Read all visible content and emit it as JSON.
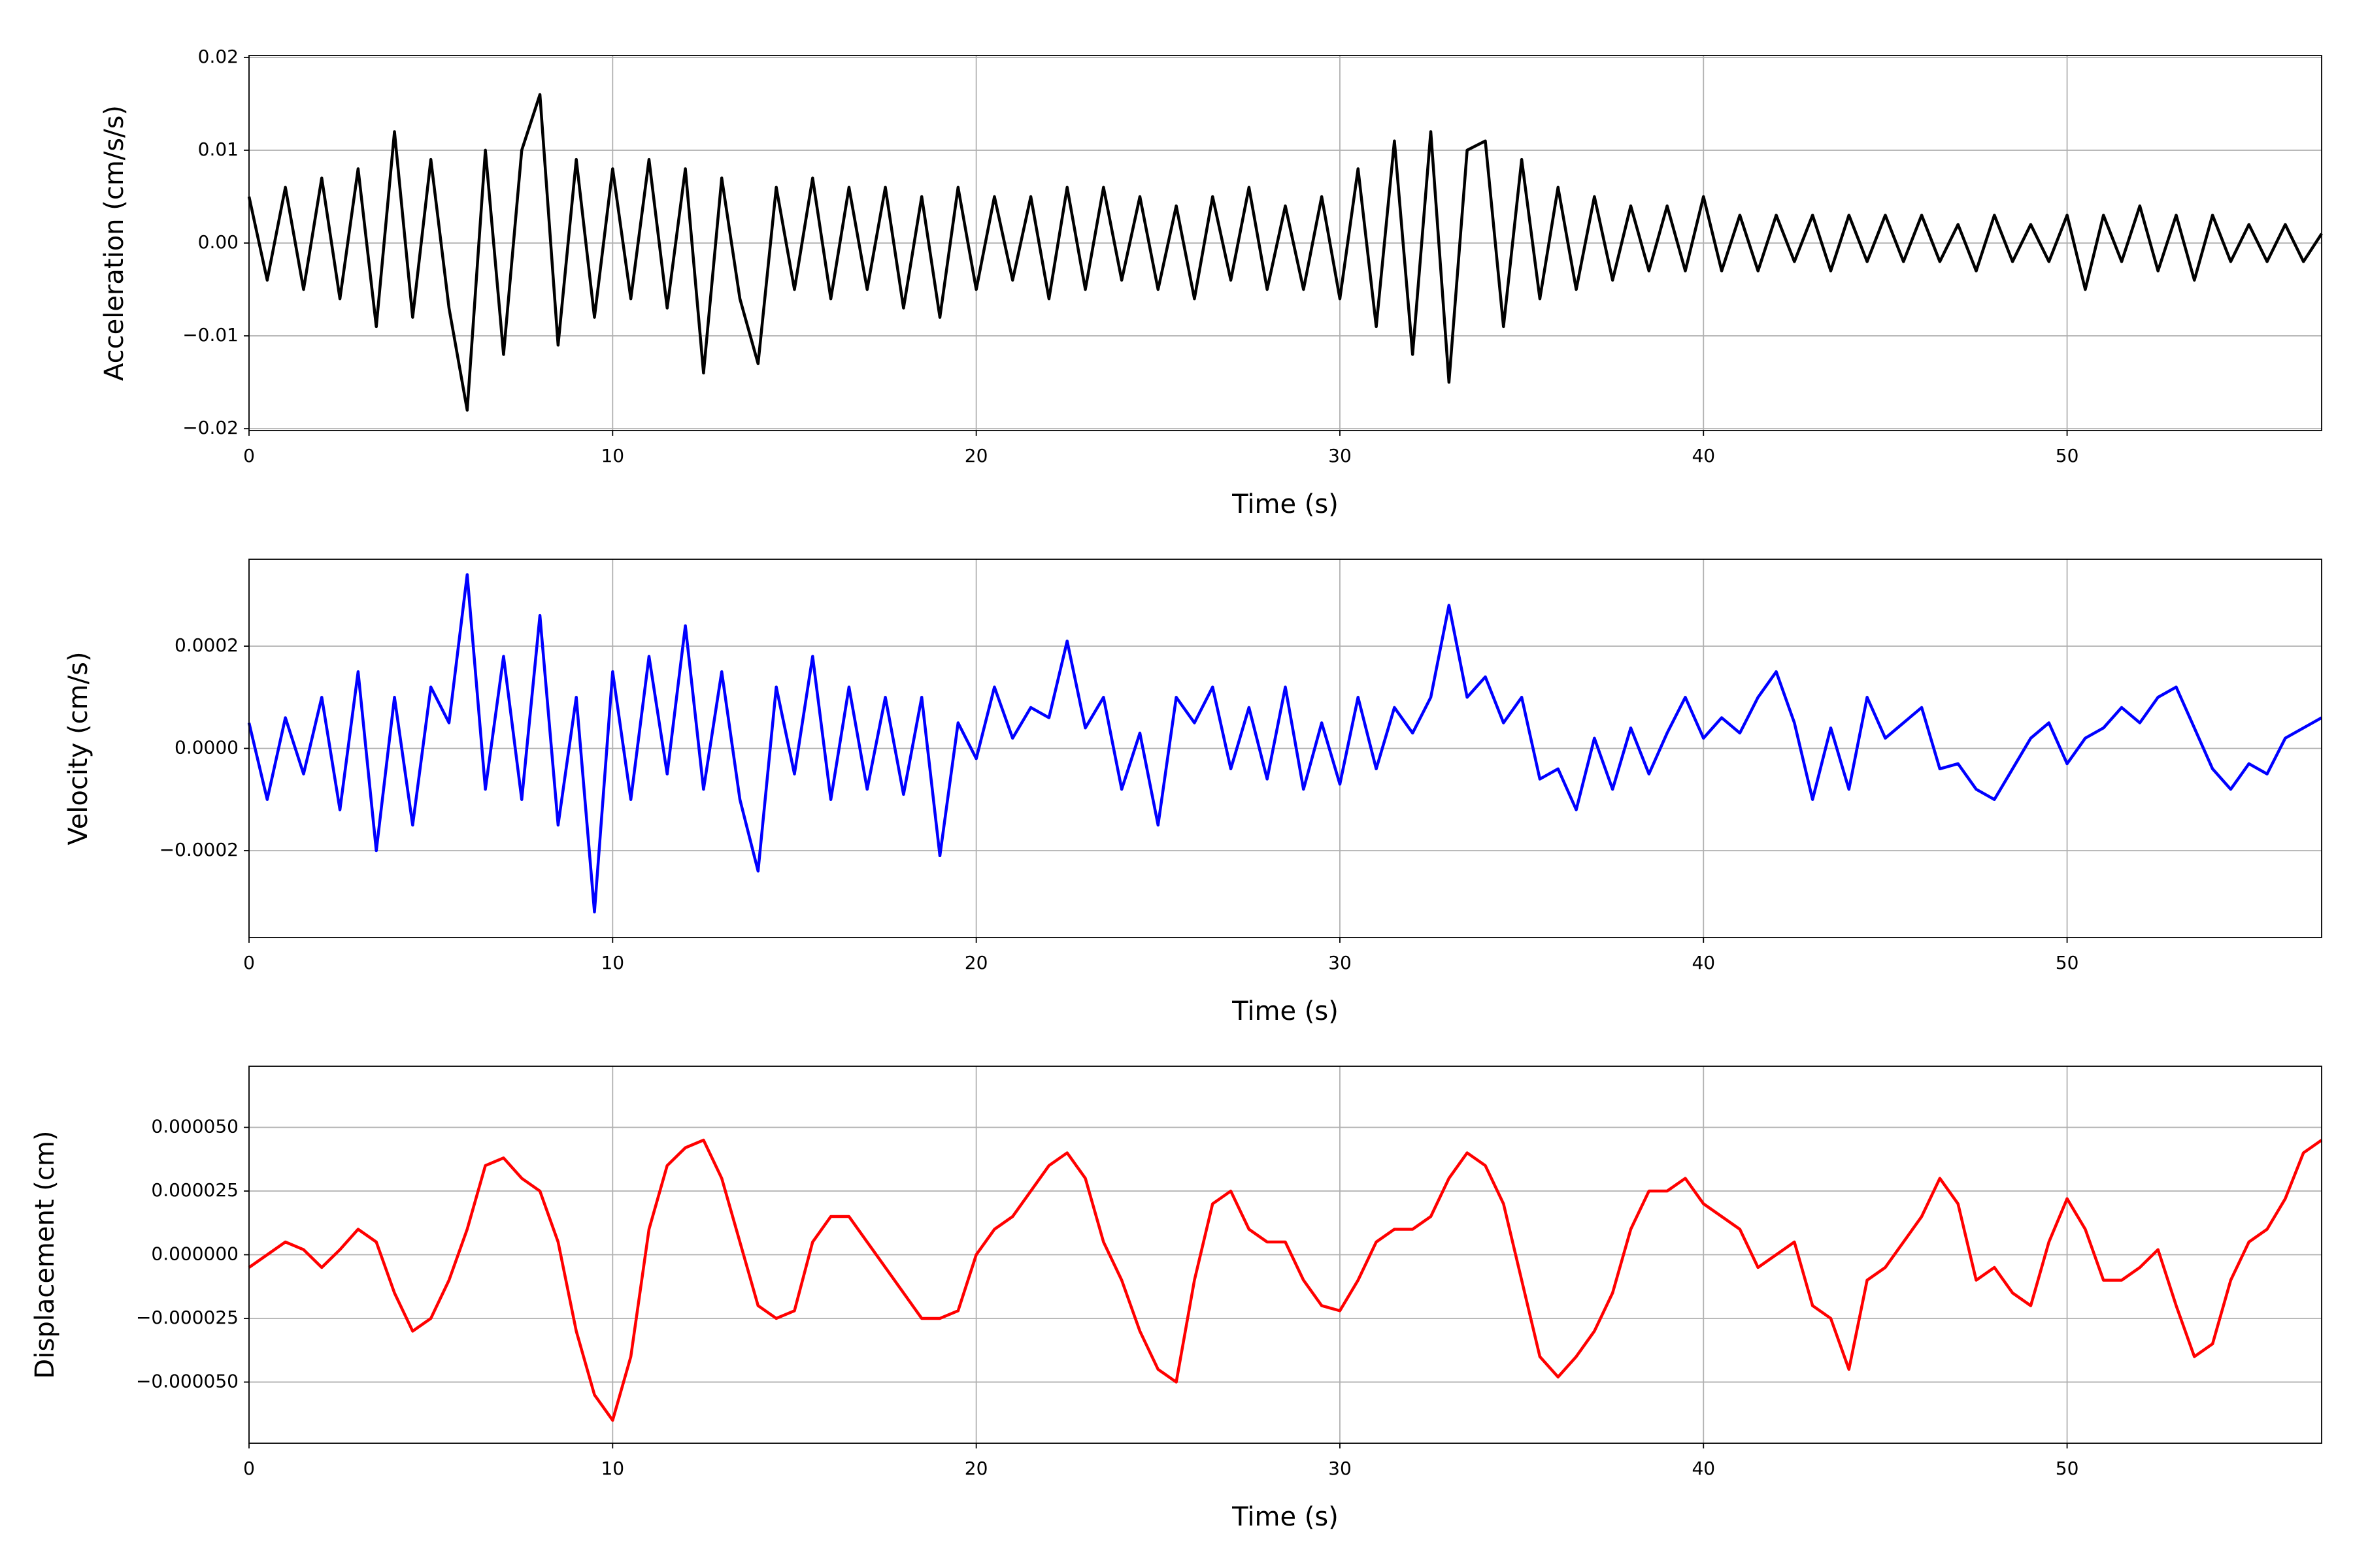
{
  "chart_data": [
    {
      "type": "line",
      "color": "#000000",
      "xlabel": "Time (s)",
      "ylabel": "Acceleration (cm/s/s)",
      "xlim": [
        0,
        57
      ],
      "xticks": [
        0,
        10,
        20,
        30,
        40,
        50
      ],
      "ylim": [
        -0.0202,
        0.0202
      ],
      "yticks": [
        {
          "value": -0.02,
          "label": "−0.02"
        },
        {
          "value": -0.01,
          "label": "−0.01"
        },
        {
          "value": 0,
          "label": "0.00"
        },
        0.01,
        0.02
      ],
      "grid": true,
      "x": [
        0,
        0.5,
        1,
        1.5,
        2,
        2.5,
        3,
        3.5,
        4,
        4.5,
        5,
        5.5,
        6,
        6.5,
        7,
        7.5,
        8,
        8.5,
        9,
        9.5,
        10,
        10.5,
        11,
        11.5,
        12,
        12.5,
        13,
        13.5,
        14,
        14.5,
        15,
        15.5,
        16,
        16.5,
        17,
        17.5,
        18,
        18.5,
        19,
        19.5,
        20,
        20.5,
        21,
        21.5,
        22,
        22.5,
        23,
        23.5,
        24,
        24.5,
        25,
        25.5,
        26,
        26.5,
        27,
        27.5,
        28,
        28.5,
        29,
        29.5,
        30,
        30.5,
        31,
        31.5,
        32,
        32.5,
        33,
        33.5,
        34,
        34.5,
        35,
        35.5,
        36,
        36.5,
        37,
        37.5,
        38,
        38.5,
        39,
        39.5,
        40,
        40.5,
        41,
        41.5,
        42,
        42.5,
        43,
        43.5,
        44,
        44.5,
        45,
        45.5,
        46,
        46.5,
        47,
        47.5,
        48,
        48.5,
        49,
        49.5,
        50,
        50.5,
        51,
        51.5,
        52,
        52.5,
        53,
        53.5,
        54,
        54.5,
        55,
        55.5,
        56,
        56.5,
        57
      ],
      "values": [
        0.005,
        -0.004,
        0.006,
        -0.005,
        0.007,
        -0.006,
        0.008,
        -0.009,
        0.012,
        -0.008,
        0.009,
        -0.007,
        -0.018,
        0.01,
        -0.012,
        0.01,
        0.016,
        -0.011,
        0.009,
        -0.008,
        0.008,
        -0.006,
        0.009,
        -0.007,
        0.008,
        -0.014,
        0.007,
        -0.006,
        -0.013,
        0.006,
        -0.005,
        0.007,
        -0.006,
        0.006,
        -0.005,
        0.006,
        -0.007,
        0.005,
        -0.008,
        0.006,
        -0.005,
        0.005,
        -0.004,
        0.005,
        -0.006,
        0.006,
        -0.005,
        0.006,
        -0.004,
        0.005,
        -0.005,
        0.004,
        -0.006,
        0.005,
        -0.004,
        0.006,
        -0.005,
        0.004,
        -0.005,
        0.005,
        -0.006,
        0.008,
        -0.009,
        0.011,
        -0.012,
        0.012,
        -0.015,
        0.01,
        0.011,
        -0.009,
        0.009,
        -0.006,
        0.006,
        -0.005,
        0.005,
        -0.004,
        0.004,
        -0.003,
        0.004,
        -0.003,
        0.005,
        -0.003,
        0.003,
        -0.003,
        0.003,
        -0.002,
        0.003,
        -0.003,
        0.003,
        -0.002,
        0.003,
        -0.002,
        0.003,
        -0.002,
        0.002,
        -0.003,
        0.003,
        -0.002,
        0.002,
        -0.002,
        0.003,
        -0.005,
        0.003,
        -0.002,
        0.004,
        -0.003,
        0.003,
        -0.004,
        0.003,
        -0.002,
        0.002,
        -0.002,
        0.002,
        -0.002,
        0.001
      ]
    },
    {
      "type": "line",
      "color": "#0000ff",
      "xlabel": "Time (s)",
      "ylabel": "Velocity (cm/s)",
      "xlim": [
        0,
        57
      ],
      "xticks": [
        0,
        10,
        20,
        30,
        40,
        50
      ],
      "ylim": [
        -0.00037,
        0.00037
      ],
      "yticks": [
        {
          "value": -0.0002,
          "label": "−0.0002"
        },
        {
          "value": 0,
          "label": "0.0000"
        },
        0.0002
      ],
      "grid": true,
      "x": [
        0,
        0.5,
        1,
        1.5,
        2,
        2.5,
        3,
        3.5,
        4,
        4.5,
        5,
        5.5,
        6,
        6.5,
        7,
        7.5,
        8,
        8.5,
        9,
        9.5,
        10,
        10.5,
        11,
        11.5,
        12,
        12.5,
        13,
        13.5,
        14,
        14.5,
        15,
        15.5,
        16,
        16.5,
        17,
        17.5,
        18,
        18.5,
        19,
        19.5,
        20,
        20.5,
        21,
        21.5,
        22,
        22.5,
        23,
        23.5,
        24,
        24.5,
        25,
        25.5,
        26,
        26.5,
        27,
        27.5,
        28,
        28.5,
        29,
        29.5,
        30,
        30.5,
        31,
        31.5,
        32,
        32.5,
        33,
        33.5,
        34,
        34.5,
        35,
        35.5,
        36,
        36.5,
        37,
        37.5,
        38,
        38.5,
        39,
        39.5,
        40,
        40.5,
        41,
        41.5,
        42,
        42.5,
        43,
        43.5,
        44,
        44.5,
        45,
        45.5,
        46,
        46.5,
        47,
        47.5,
        48,
        48.5,
        49,
        49.5,
        50,
        50.5,
        51,
        51.5,
        52,
        52.5,
        53,
        53.5,
        54,
        54.5,
        55,
        55.5,
        56,
        56.5,
        57
      ],
      "values": [
        5e-05,
        -0.0001,
        6e-05,
        -5e-05,
        0.0001,
        -0.00012,
        0.00015,
        -0.0002,
        0.0001,
        -0.00015,
        0.00012,
        5e-05,
        0.00034,
        -8e-05,
        0.00018,
        -0.0001,
        0.00026,
        -0.00015,
        0.0001,
        -0.00032,
        0.00015,
        -0.0001,
        0.00018,
        -5e-05,
        0.00024,
        -8e-05,
        0.00015,
        -0.0001,
        -0.00024,
        0.00012,
        -5e-05,
        0.00018,
        -0.0001,
        0.00012,
        -8e-05,
        0.0001,
        -9e-05,
        0.0001,
        -0.00021,
        5e-05,
        -2e-05,
        0.00012,
        2e-05,
        8e-05,
        6e-05,
        0.00021,
        4e-05,
        0.0001,
        -8e-05,
        3e-05,
        -0.00015,
        0.0001,
        5e-05,
        0.00012,
        -4e-05,
        8e-05,
        -6e-05,
        0.00012,
        -8e-05,
        5e-05,
        -7e-05,
        0.0001,
        -4e-05,
        8e-05,
        3e-05,
        0.0001,
        0.00028,
        0.0001,
        0.00014,
        5e-05,
        0.0001,
        -6e-05,
        -4e-05,
        -0.00012,
        2e-05,
        -8e-05,
        4e-05,
        -5e-05,
        3e-05,
        0.0001,
        2e-05,
        6e-05,
        3e-05,
        0.0001,
        0.00015,
        5e-05,
        -0.0001,
        4e-05,
        -8e-05,
        0.0001,
        2e-05,
        5e-05,
        8e-05,
        -4e-05,
        -3e-05,
        -8e-05,
        -0.0001,
        -4e-05,
        2e-05,
        5e-05,
        -3e-05,
        2e-05,
        4e-05,
        8e-05,
        5e-05,
        0.0001,
        0.00012,
        4e-05,
        -4e-05,
        -8e-05,
        -3e-05,
        -5e-05,
        2e-05,
        4e-05,
        6e-05
      ]
    },
    {
      "type": "line",
      "color": "#ff0000",
      "xlabel": "Time (s)",
      "ylabel": "Displacement (cm)",
      "xlim": [
        0,
        57
      ],
      "xticks": [
        0,
        10,
        20,
        30,
        40,
        50
      ],
      "ylim": [
        -7.4e-05,
        7.4e-05
      ],
      "yticks": [
        {
          "value": -5e-05,
          "label": "−0.000050"
        },
        {
          "value": -2.5e-05,
          "label": "−0.000025"
        },
        {
          "value": 0,
          "label": "0.000000"
        },
        {
          "value": 2.5e-05,
          "label": "0.000025"
        },
        {
          "value": 5e-05,
          "label": "0.000050"
        }
      ],
      "grid": true,
      "x": [
        0,
        0.5,
        1,
        1.5,
        2,
        2.5,
        3,
        3.5,
        4,
        4.5,
        5,
        5.5,
        6,
        6.5,
        7,
        7.5,
        8,
        8.5,
        9,
        9.5,
        10,
        10.5,
        11,
        11.5,
        12,
        12.5,
        13,
        13.5,
        14,
        14.5,
        15,
        15.5,
        16,
        16.5,
        17,
        17.5,
        18,
        18.5,
        19,
        19.5,
        20,
        20.5,
        21,
        21.5,
        22,
        22.5,
        23,
        23.5,
        24,
        24.5,
        25,
        25.5,
        26,
        26.5,
        27,
        27.5,
        28,
        28.5,
        29,
        29.5,
        30,
        30.5,
        31,
        31.5,
        32,
        32.5,
        33,
        33.5,
        34,
        34.5,
        35,
        35.5,
        36,
        36.5,
        37,
        37.5,
        38,
        38.5,
        39,
        39.5,
        40,
        40.5,
        41,
        41.5,
        42,
        42.5,
        43,
        43.5,
        44,
        44.5,
        45,
        45.5,
        46,
        46.5,
        47,
        47.5,
        48,
        48.5,
        49,
        49.5,
        50,
        50.5,
        51,
        51.5,
        52,
        52.5,
        53,
        53.5,
        54,
        54.5,
        55,
        55.5,
        56,
        56.5,
        57
      ],
      "values": [
        -5e-06,
        0,
        5e-06,
        2e-06,
        -5e-06,
        2e-06,
        1e-05,
        5e-06,
        -1.5e-05,
        -3e-05,
        -2.5e-05,
        -1e-05,
        1e-05,
        3.5e-05,
        3.8e-05,
        3e-05,
        2.5e-05,
        5e-06,
        -3e-05,
        -5.5e-05,
        -6.5e-05,
        -4e-05,
        1e-05,
        3.5e-05,
        4.2e-05,
        4.5e-05,
        3e-05,
        5e-06,
        -2e-05,
        -2.5e-05,
        -2.2e-05,
        5e-06,
        1.5e-05,
        1.5e-05,
        5e-06,
        -5e-06,
        -1.5e-05,
        -2.5e-05,
        -2.5e-05,
        -2.2e-05,
        0,
        1e-05,
        1.5e-05,
        2.5e-05,
        3.5e-05,
        4e-05,
        3e-05,
        5e-06,
        -1e-05,
        -3e-05,
        -4.5e-05,
        -5e-05,
        -1e-05,
        2e-05,
        2.5e-05,
        1e-05,
        5e-06,
        5e-06,
        -1e-05,
        -2e-05,
        -2.2e-05,
        -1e-05,
        5e-06,
        1e-05,
        1e-05,
        1.5e-05,
        3e-05,
        4e-05,
        3.5e-05,
        2e-05,
        -1e-05,
        -4e-05,
        -4.8e-05,
        -4e-05,
        -3e-05,
        -1.5e-05,
        1e-05,
        2.5e-05,
        2.5e-05,
        3e-05,
        2e-05,
        1.5e-05,
        1e-05,
        -5e-06,
        0,
        5e-06,
        -2e-05,
        -2.5e-05,
        -4.5e-05,
        -1e-05,
        -5e-06,
        5e-06,
        1.5e-05,
        3e-05,
        2e-05,
        -1e-05,
        -5e-06,
        -1.5e-05,
        -2e-05,
        5e-06,
        2.2e-05,
        1e-05,
        -1e-05,
        -1e-05,
        -5e-06,
        2e-06,
        -2e-05,
        -4e-05,
        -3.5e-05,
        -1e-05,
        5e-06,
        1e-05,
        2.2e-05,
        4e-05,
        4.5e-05
      ]
    }
  ]
}
